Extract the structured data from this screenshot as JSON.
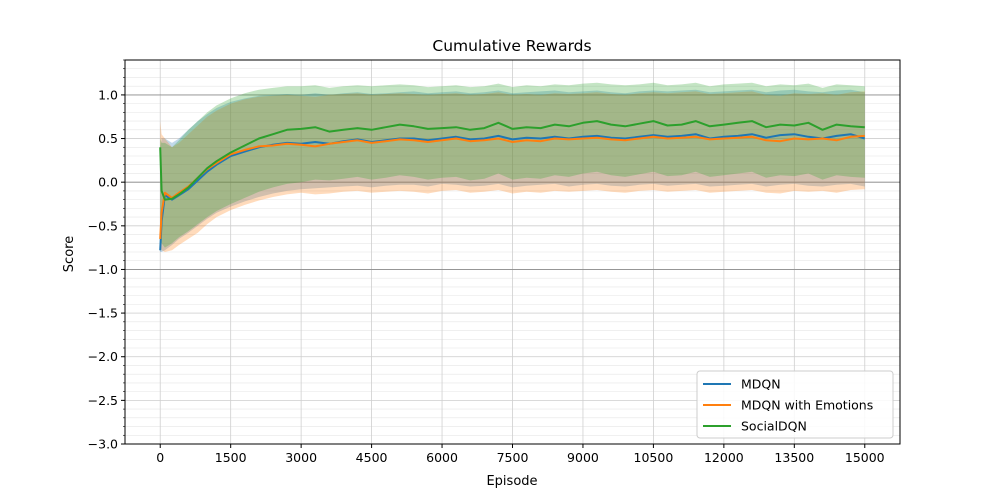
{
  "chart_data": {
    "type": "line",
    "title": "Cumulative Rewards",
    "xlabel": "Episode",
    "ylabel": "Score",
    "xlim": [
      -750,
      15750
    ],
    "ylim": [
      -3.0,
      1.4
    ],
    "xticks": [
      0,
      1500,
      3000,
      4500,
      6000,
      7500,
      9000,
      10500,
      12000,
      13500,
      15000
    ],
    "xtick_labels": [
      "0",
      "1500",
      "3000",
      "4500",
      "6000",
      "7500",
      "9000",
      "10500",
      "12000",
      "13500",
      "15000"
    ],
    "yticks": [
      -3.0,
      -2.5,
      -2.0,
      -1.5,
      -1.0,
      -0.5,
      0.0,
      0.5,
      1.0
    ],
    "ytick_labels": [
      "−3.0",
      "−2.5",
      "−2.0",
      "−1.5",
      "−1.0",
      "−0.5",
      "0.0",
      "0.5",
      "1.0"
    ],
    "reference_lines_y": [
      1.0,
      0.0,
      -1.0
    ],
    "grid": true,
    "legend_position": "lower-right",
    "x": [
      0,
      30,
      100,
      250,
      400,
      600,
      800,
      1000,
      1200,
      1500,
      1800,
      2100,
      2400,
      2700,
      3000,
      3300,
      3600,
      3900,
      4200,
      4500,
      4800,
      5100,
      5400,
      5700,
      6000,
      6300,
      6600,
      6900,
      7200,
      7500,
      7800,
      8100,
      8400,
      8700,
      9000,
      9300,
      9600,
      9900,
      10200,
      10500,
      10800,
      11100,
      11400,
      11700,
      12000,
      12300,
      12600,
      12900,
      13200,
      13500,
      13800,
      14100,
      14400,
      14700,
      15000
    ],
    "series": [
      {
        "name": "MDQN",
        "color": "#1f77b4",
        "values": [
          -0.78,
          -0.45,
          -0.15,
          -0.2,
          -0.15,
          -0.08,
          0.02,
          0.12,
          0.2,
          0.3,
          0.35,
          0.4,
          0.43,
          0.45,
          0.44,
          0.46,
          0.44,
          0.47,
          0.49,
          0.46,
          0.48,
          0.5,
          0.5,
          0.48,
          0.5,
          0.52,
          0.49,
          0.5,
          0.53,
          0.49,
          0.51,
          0.5,
          0.52,
          0.5,
          0.52,
          0.53,
          0.51,
          0.5,
          0.52,
          0.54,
          0.52,
          0.53,
          0.55,
          0.5,
          0.52,
          0.53,
          0.55,
          0.51,
          0.54,
          0.55,
          0.52,
          0.5,
          0.53,
          0.55,
          0.5
        ],
        "band_lower": [
          -0.8,
          -0.8,
          -0.78,
          -0.72,
          -0.65,
          -0.58,
          -0.5,
          -0.42,
          -0.35,
          -0.28,
          -0.22,
          -0.17,
          -0.13,
          -0.1,
          -0.08,
          -0.07,
          -0.06,
          -0.05,
          -0.04,
          -0.06,
          -0.04,
          -0.03,
          -0.03,
          -0.05,
          -0.02,
          -0.03,
          -0.05,
          -0.04,
          -0.02,
          -0.06,
          -0.04,
          -0.03,
          -0.02,
          -0.05,
          -0.03,
          -0.02,
          -0.04,
          -0.05,
          -0.03,
          -0.02,
          -0.04,
          -0.03,
          -0.02,
          -0.05,
          -0.04,
          -0.03,
          -0.02,
          -0.05,
          -0.03,
          -0.02,
          -0.04,
          -0.05,
          -0.03,
          -0.02,
          -0.05
        ],
        "band_upper": [
          0.38,
          0.5,
          0.5,
          0.45,
          0.5,
          0.6,
          0.7,
          0.78,
          0.85,
          0.92,
          0.96,
          0.99,
          1.0,
          1.01,
          1.0,
          1.02,
          1.0,
          1.02,
          1.03,
          1.01,
          1.02,
          1.03,
          1.04,
          1.02,
          1.03,
          1.04,
          1.02,
          1.03,
          1.05,
          1.02,
          1.03,
          1.04,
          1.05,
          1.03,
          1.04,
          1.05,
          1.03,
          1.02,
          1.04,
          1.05,
          1.04,
          1.05,
          1.06,
          1.03,
          1.04,
          1.05,
          1.06,
          1.03,
          1.05,
          1.06,
          1.04,
          1.03,
          1.05,
          1.06,
          1.03
        ]
      },
      {
        "name": "MDQN with Emotions",
        "color": "#ff7f0e",
        "values": [
          -0.65,
          -0.35,
          -0.12,
          -0.18,
          -0.12,
          -0.05,
          0.05,
          0.15,
          0.22,
          0.32,
          0.37,
          0.41,
          0.42,
          0.44,
          0.43,
          0.41,
          0.44,
          0.46,
          0.48,
          0.45,
          0.47,
          0.49,
          0.48,
          0.46,
          0.48,
          0.5,
          0.47,
          0.48,
          0.5,
          0.46,
          0.48,
          0.47,
          0.5,
          0.49,
          0.5,
          0.51,
          0.49,
          0.48,
          0.5,
          0.52,
          0.5,
          0.51,
          0.52,
          0.49,
          0.5,
          0.51,
          0.52,
          0.48,
          0.47,
          0.5,
          0.49,
          0.5,
          0.48,
          0.52,
          0.53
        ],
        "band_lower": [
          -0.75,
          -0.78,
          -0.8,
          -0.78,
          -0.72,
          -0.65,
          -0.58,
          -0.48,
          -0.4,
          -0.32,
          -0.26,
          -0.21,
          -0.17,
          -0.14,
          -0.12,
          -0.14,
          -0.13,
          -0.11,
          -0.1,
          -0.12,
          -0.11,
          -0.1,
          -0.11,
          -0.13,
          -0.1,
          -0.09,
          -0.12,
          -0.11,
          -0.09,
          -0.13,
          -0.11,
          -0.12,
          -0.1,
          -0.11,
          -0.1,
          -0.09,
          -0.11,
          -0.12,
          -0.1,
          -0.09,
          -0.11,
          -0.1,
          -0.09,
          -0.12,
          -0.11,
          -0.1,
          -0.09,
          -0.12,
          -0.13,
          -0.1,
          -0.11,
          -0.1,
          -0.12,
          -0.09,
          -0.08
        ],
        "band_upper": [
          0.7,
          0.55,
          0.5,
          0.4,
          0.45,
          0.55,
          0.65,
          0.75,
          0.82,
          0.9,
          0.95,
          0.98,
          0.99,
          1.0,
          0.99,
          0.98,
          1.0,
          1.01,
          1.02,
          1.0,
          1.01,
          1.02,
          1.01,
          1.0,
          1.01,
          1.02,
          1.0,
          1.01,
          1.03,
          1.0,
          1.01,
          1.0,
          1.02,
          1.01,
          1.02,
          1.03,
          1.01,
          1.0,
          1.02,
          1.03,
          1.02,
          1.03,
          1.04,
          1.01,
          1.02,
          1.03,
          1.04,
          1.0,
          0.99,
          1.02,
          1.01,
          1.02,
          1.0,
          1.03,
          1.04
        ]
      },
      {
        "name": "SocialDQN",
        "color": "#2ca02c",
        "values": [
          0.4,
          -0.1,
          -0.2,
          -0.19,
          -0.14,
          -0.06,
          0.05,
          0.16,
          0.24,
          0.34,
          0.42,
          0.5,
          0.55,
          0.6,
          0.61,
          0.63,
          0.58,
          0.6,
          0.62,
          0.6,
          0.63,
          0.66,
          0.64,
          0.61,
          0.62,
          0.63,
          0.6,
          0.62,
          0.68,
          0.61,
          0.63,
          0.62,
          0.66,
          0.64,
          0.68,
          0.7,
          0.66,
          0.64,
          0.67,
          0.7,
          0.65,
          0.66,
          0.7,
          0.64,
          0.66,
          0.68,
          0.7,
          0.63,
          0.66,
          0.65,
          0.68,
          0.6,
          0.66,
          0.64,
          0.63
        ],
        "band_lower": [
          -0.6,
          -0.7,
          -0.75,
          -0.7,
          -0.63,
          -0.56,
          -0.48,
          -0.4,
          -0.33,
          -0.25,
          -0.18,
          -0.11,
          -0.06,
          -0.02,
          0.0,
          0.03,
          0.02,
          0.04,
          0.06,
          0.03,
          0.05,
          0.08,
          0.06,
          0.03,
          0.05,
          0.06,
          0.02,
          0.04,
          0.1,
          0.03,
          0.05,
          0.04,
          0.08,
          0.06,
          0.1,
          0.12,
          0.08,
          0.06,
          0.09,
          0.12,
          0.07,
          0.08,
          0.12,
          0.06,
          0.08,
          0.1,
          0.12,
          0.05,
          0.08,
          0.07,
          0.1,
          0.03,
          0.08,
          0.06,
          0.05
        ],
        "band_upper": [
          0.5,
          0.45,
          0.45,
          0.4,
          0.48,
          0.6,
          0.7,
          0.8,
          0.88,
          0.96,
          1.02,
          1.06,
          1.08,
          1.1,
          1.1,
          1.11,
          1.08,
          1.1,
          1.11,
          1.1,
          1.11,
          1.12,
          1.11,
          1.09,
          1.1,
          1.11,
          1.09,
          1.1,
          1.13,
          1.09,
          1.11,
          1.1,
          1.12,
          1.11,
          1.13,
          1.14,
          1.12,
          1.11,
          1.12,
          1.14,
          1.11,
          1.12,
          1.14,
          1.1,
          1.12,
          1.13,
          1.14,
          1.1,
          1.12,
          1.11,
          1.13,
          1.08,
          1.12,
          1.11,
          1.1
        ]
      }
    ]
  }
}
